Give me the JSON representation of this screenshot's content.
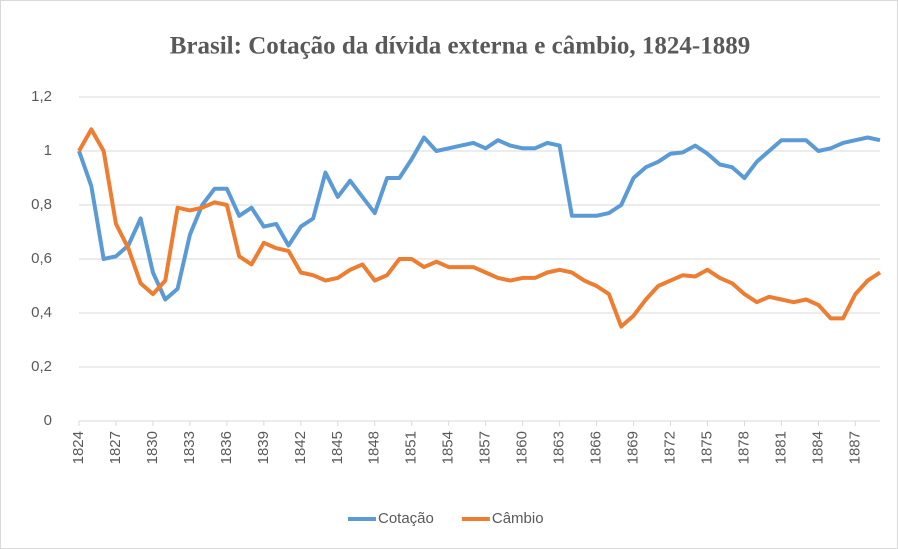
{
  "chart_data": {
    "type": "line",
    "title": "Brasil: Cotação da dívida externa e câmbio, 1824-1889",
    "x": [
      1824,
      1825,
      1826,
      1827,
      1828,
      1829,
      1830,
      1831,
      1832,
      1833,
      1834,
      1835,
      1836,
      1837,
      1838,
      1839,
      1840,
      1841,
      1842,
      1843,
      1844,
      1845,
      1846,
      1847,
      1848,
      1849,
      1850,
      1851,
      1852,
      1853,
      1854,
      1855,
      1856,
      1857,
      1858,
      1859,
      1860,
      1861,
      1862,
      1863,
      1864,
      1865,
      1866,
      1867,
      1868,
      1869,
      1870,
      1871,
      1872,
      1873,
      1874,
      1875,
      1876,
      1877,
      1878,
      1879,
      1880,
      1881,
      1882,
      1883,
      1884,
      1885,
      1886,
      1887,
      1888,
      1889
    ],
    "series": [
      {
        "name": "Cotação",
        "color": "#5b9bd5",
        "values": [
          1.0,
          0.87,
          0.6,
          0.61,
          0.65,
          0.75,
          0.55,
          0.45,
          0.49,
          0.69,
          0.8,
          0.86,
          0.86,
          0.76,
          0.79,
          0.72,
          0.73,
          0.65,
          0.72,
          0.75,
          0.92,
          0.83,
          0.89,
          0.83,
          0.77,
          0.9,
          0.9,
          0.97,
          1.05,
          1.0,
          1.01,
          1.02,
          1.03,
          1.01,
          1.04,
          1.02,
          1.01,
          1.01,
          1.03,
          1.02,
          0.76,
          0.76,
          0.76,
          0.77,
          0.8,
          0.9,
          0.94,
          0.96,
          0.99,
          0.995,
          1.02,
          0.99,
          0.95,
          0.94,
          0.9,
          0.96,
          1.0,
          1.04,
          1.04,
          1.04,
          1.0,
          1.01,
          1.03,
          1.04,
          1.05,
          1.04
        ]
      },
      {
        "name": "Câmbio",
        "color": "#ed7d31",
        "values": [
          1.0,
          1.08,
          1.0,
          0.73,
          0.64,
          0.51,
          0.47,
          0.52,
          0.79,
          0.78,
          0.79,
          0.81,
          0.8,
          0.61,
          0.58,
          0.66,
          0.64,
          0.63,
          0.55,
          0.54,
          0.52,
          0.53,
          0.56,
          0.58,
          0.52,
          0.54,
          0.6,
          0.6,
          0.57,
          0.59,
          0.57,
          0.57,
          0.57,
          0.55,
          0.53,
          0.52,
          0.53,
          0.53,
          0.55,
          0.56,
          0.55,
          0.52,
          0.5,
          0.47,
          0.35,
          0.39,
          0.45,
          0.5,
          0.52,
          0.54,
          0.535,
          0.56,
          0.53,
          0.51,
          0.47,
          0.44,
          0.46,
          0.45,
          0.44,
          0.45,
          0.43,
          0.38,
          0.38,
          0.47,
          0.52,
          0.55
        ]
      }
    ],
    "xlim": [
      1824,
      1889
    ],
    "xticks": [
      1824,
      1827,
      1830,
      1833,
      1836,
      1839,
      1842,
      1845,
      1848,
      1851,
      1854,
      1857,
      1860,
      1863,
      1866,
      1869,
      1872,
      1875,
      1878,
      1881,
      1884,
      1887
    ],
    "ylim": [
      0,
      1.2
    ],
    "yticks": [
      0,
      {
        "value": 0.2,
        "label": "0,2"
      },
      {
        "value": 0.4,
        "label": "0,4"
      },
      {
        "value": 0.6,
        "label": "0,6"
      },
      {
        "value": 0.8,
        "label": "0,8"
      },
      1,
      {
        "value": 1.2,
        "label": "1,2"
      }
    ],
    "grid": true,
    "legend": "bottom"
  }
}
